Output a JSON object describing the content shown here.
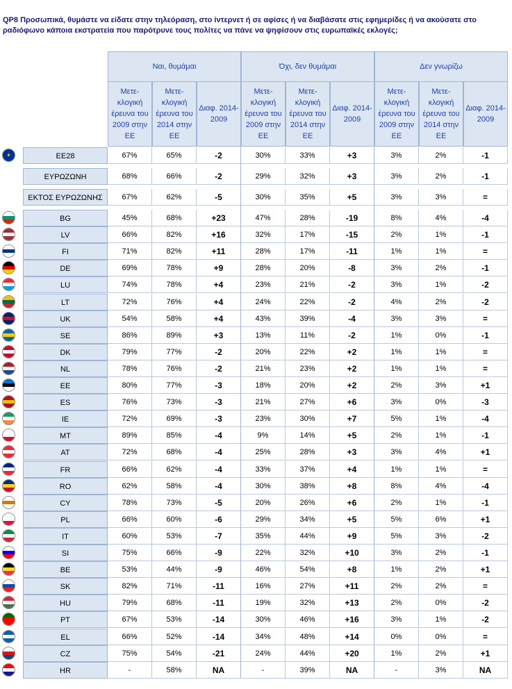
{
  "title": "QP8 Προσωπικά, θυμάστε να είδατε στην τηλεόραση, στο ίντερνετ ή σε αφίσες ή να διαβάσατε στις εφημερίδες ή να ακούσατε στο ραδιόφωνο κάποια εκστρατεία που παρότρυνε τους πολίτες να πάνε να ψηφίσουν στις ευρωπαϊκές εκλογές;",
  "groups": [
    "Ναι, θυμάμαι",
    "Όχι, δεν θυμάμαι",
    "Δεν γνωρίζω"
  ],
  "subheaders": [
    "Μετε-κλογική έρευνα του 2009 στην ΕΕ",
    "Μετε-κλογική έρευνα του 2014 στην ΕΕ",
    "Διαφ. 2014-2009"
  ],
  "summary_rows": [
    {
      "label": "ΕΕ28",
      "flag": "eu",
      "values": [
        "67%",
        "65%",
        "-2",
        "30%",
        "33%",
        "+3",
        "3%",
        "2%",
        "-1"
      ]
    },
    {
      "label": "ΕΥΡΩΖΩΝΗ",
      "flag": "",
      "values": [
        "68%",
        "66%",
        "-2",
        "29%",
        "32%",
        "+3",
        "3%",
        "2%",
        "-1"
      ]
    },
    {
      "label": "ΕΚΤΟΣ ΕΥΡΩΖΩΝΗΣ",
      "flag": "",
      "values": [
        "67%",
        "62%",
        "-5",
        "30%",
        "35%",
        "+5",
        "3%",
        "3%",
        "="
      ]
    }
  ],
  "rows": [
    {
      "label": "BG",
      "flag": [
        "#ffffff",
        "#00966e",
        "#d62612"
      ],
      "values": [
        "45%",
        "68%",
        "+23",
        "47%",
        "28%",
        "-19",
        "8%",
        "4%",
        "-4"
      ]
    },
    {
      "label": "LV",
      "flag": [
        "#9e3039",
        "#ffffff",
        "#9e3039"
      ],
      "values": [
        "66%",
        "82%",
        "+16",
        "32%",
        "17%",
        "-15",
        "2%",
        "1%",
        "-1"
      ]
    },
    {
      "label": "FI",
      "flag": [
        "#ffffff",
        "#003580",
        "#ffffff"
      ],
      "values": [
        "71%",
        "82%",
        "+11",
        "28%",
        "17%",
        "-11",
        "1%",
        "1%",
        "="
      ]
    },
    {
      "label": "DE",
      "flag": [
        "#000000",
        "#dd0000",
        "#ffce00"
      ],
      "values": [
        "69%",
        "78%",
        "+9",
        "28%",
        "20%",
        "-8",
        "3%",
        "2%",
        "-1"
      ]
    },
    {
      "label": "LU",
      "flag": [
        "#ed2939",
        "#ffffff",
        "#00a1de"
      ],
      "values": [
        "74%",
        "78%",
        "+4",
        "23%",
        "21%",
        "-2",
        "3%",
        "1%",
        "-2"
      ]
    },
    {
      "label": "LT",
      "flag": [
        "#fdb913",
        "#006a44",
        "#c1272d"
      ],
      "values": [
        "72%",
        "76%",
        "+4",
        "24%",
        "22%",
        "-2",
        "4%",
        "2%",
        "-2"
      ]
    },
    {
      "label": "UK",
      "flag": [
        "#012169",
        "#c8102e",
        "#012169"
      ],
      "values": [
        "54%",
        "58%",
        "+4",
        "43%",
        "39%",
        "-4",
        "3%",
        "3%",
        "="
      ]
    },
    {
      "label": "SE",
      "flag": [
        "#006aa7",
        "#fecc00",
        "#006aa7"
      ],
      "values": [
        "86%",
        "89%",
        "+3",
        "13%",
        "11%",
        "-2",
        "1%",
        "0%",
        "-1"
      ]
    },
    {
      "label": "DK",
      "flag": [
        "#c60c30",
        "#ffffff",
        "#c60c30"
      ],
      "values": [
        "79%",
        "77%",
        "-2",
        "20%",
        "22%",
        "+2",
        "1%",
        "1%",
        "="
      ]
    },
    {
      "label": "NL",
      "flag": [
        "#ae1c28",
        "#ffffff",
        "#21468b"
      ],
      "values": [
        "78%",
        "76%",
        "-2",
        "21%",
        "23%",
        "+2",
        "1%",
        "1%",
        "="
      ]
    },
    {
      "label": "EE",
      "flag": [
        "#0072ce",
        "#000000",
        "#ffffff"
      ],
      "values": [
        "80%",
        "77%",
        "-3",
        "18%",
        "20%",
        "+2",
        "2%",
        "3%",
        "+1"
      ]
    },
    {
      "label": "ES",
      "flag": [
        "#aa151b",
        "#f1bf00",
        "#aa151b"
      ],
      "values": [
        "76%",
        "73%",
        "-3",
        "21%",
        "27%",
        "+6",
        "3%",
        "0%",
        "-3"
      ]
    },
    {
      "label": "IE",
      "flag": [
        "#169b62",
        "#ffffff",
        "#ff883e"
      ],
      "values": [
        "72%",
        "69%",
        "-3",
        "23%",
        "30%",
        "+7",
        "5%",
        "1%",
        "-4"
      ]
    },
    {
      "label": "MT",
      "flag": [
        "#ffffff",
        "#ffffff",
        "#cf142b"
      ],
      "values": [
        "89%",
        "85%",
        "-4",
        "9%",
        "14%",
        "+5",
        "2%",
        "1%",
        "-1"
      ]
    },
    {
      "label": "AT",
      "flag": [
        "#ed2939",
        "#ffffff",
        "#ed2939"
      ],
      "values": [
        "72%",
        "68%",
        "-4",
        "25%",
        "28%",
        "+3",
        "3%",
        "4%",
        "+1"
      ]
    },
    {
      "label": "FR",
      "flag": [
        "#002395",
        "#ffffff",
        "#ed2939"
      ],
      "values": [
        "66%",
        "62%",
        "-4",
        "33%",
        "37%",
        "+4",
        "1%",
        "1%",
        "="
      ]
    },
    {
      "label": "RO",
      "flag": [
        "#002b7f",
        "#fcd116",
        "#ce1126"
      ],
      "values": [
        "62%",
        "58%",
        "-4",
        "30%",
        "38%",
        "+8",
        "8%",
        "4%",
        "-4"
      ]
    },
    {
      "label": "CY",
      "flag": [
        "#ffffff",
        "#d57800",
        "#ffffff"
      ],
      "values": [
        "78%",
        "73%",
        "-5",
        "20%",
        "26%",
        "+6",
        "2%",
        "1%",
        "-1"
      ]
    },
    {
      "label": "PL",
      "flag": [
        "#ffffff",
        "#ffffff",
        "#dc143c"
      ],
      "values": [
        "66%",
        "60%",
        "-6",
        "29%",
        "34%",
        "+5",
        "5%",
        "6%",
        "+1"
      ]
    },
    {
      "label": "IT",
      "flag": [
        "#009246",
        "#ffffff",
        "#ce2b37"
      ],
      "values": [
        "60%",
        "53%",
        "-7",
        "35%",
        "44%",
        "+9",
        "5%",
        "3%",
        "-2"
      ]
    },
    {
      "label": "SI",
      "flag": [
        "#ffffff",
        "#0000ff",
        "#ff0000"
      ],
      "values": [
        "75%",
        "66%",
        "-9",
        "22%",
        "32%",
        "+10",
        "3%",
        "2%",
        "-1"
      ]
    },
    {
      "label": "BE",
      "flag": [
        "#000000",
        "#fdda24",
        "#ef3340"
      ],
      "values": [
        "53%",
        "44%",
        "-9",
        "46%",
        "54%",
        "+8",
        "1%",
        "2%",
        "+1"
      ]
    },
    {
      "label": "SK",
      "flag": [
        "#ffffff",
        "#0b4ea2",
        "#ee1c25"
      ],
      "values": [
        "82%",
        "71%",
        "-11",
        "16%",
        "27%",
        "+11",
        "2%",
        "2%",
        "="
      ]
    },
    {
      "label": "HU",
      "flag": [
        "#ce2939",
        "#ffffff",
        "#477050"
      ],
      "values": [
        "79%",
        "68%",
        "-11",
        "19%",
        "32%",
        "+13",
        "2%",
        "0%",
        "-2"
      ]
    },
    {
      "label": "PT",
      "flag": [
        "#006600",
        "#ff0000",
        "#ff0000"
      ],
      "values": [
        "67%",
        "53%",
        "-14",
        "30%",
        "46%",
        "+16",
        "3%",
        "1%",
        "-2"
      ]
    },
    {
      "label": "EL",
      "flag": [
        "#0d5eaf",
        "#ffffff",
        "#0d5eaf"
      ],
      "values": [
        "66%",
        "52%",
        "-14",
        "34%",
        "48%",
        "+14",
        "0%",
        "0%",
        "="
      ]
    },
    {
      "label": "CZ",
      "flag": [
        "#ffffff",
        "#d7141a",
        "#11457e"
      ],
      "values": [
        "75%",
        "54%",
        "-21",
        "24%",
        "44%",
        "+20",
        "1%",
        "2%",
        "+1"
      ]
    },
    {
      "label": "HR",
      "flag": [
        "#ff0000",
        "#ffffff",
        "#171796"
      ],
      "values": [
        "-",
        "58%",
        "NA",
        "-",
        "39%",
        "NA",
        "-",
        "3%",
        "NA"
      ]
    }
  ]
}
